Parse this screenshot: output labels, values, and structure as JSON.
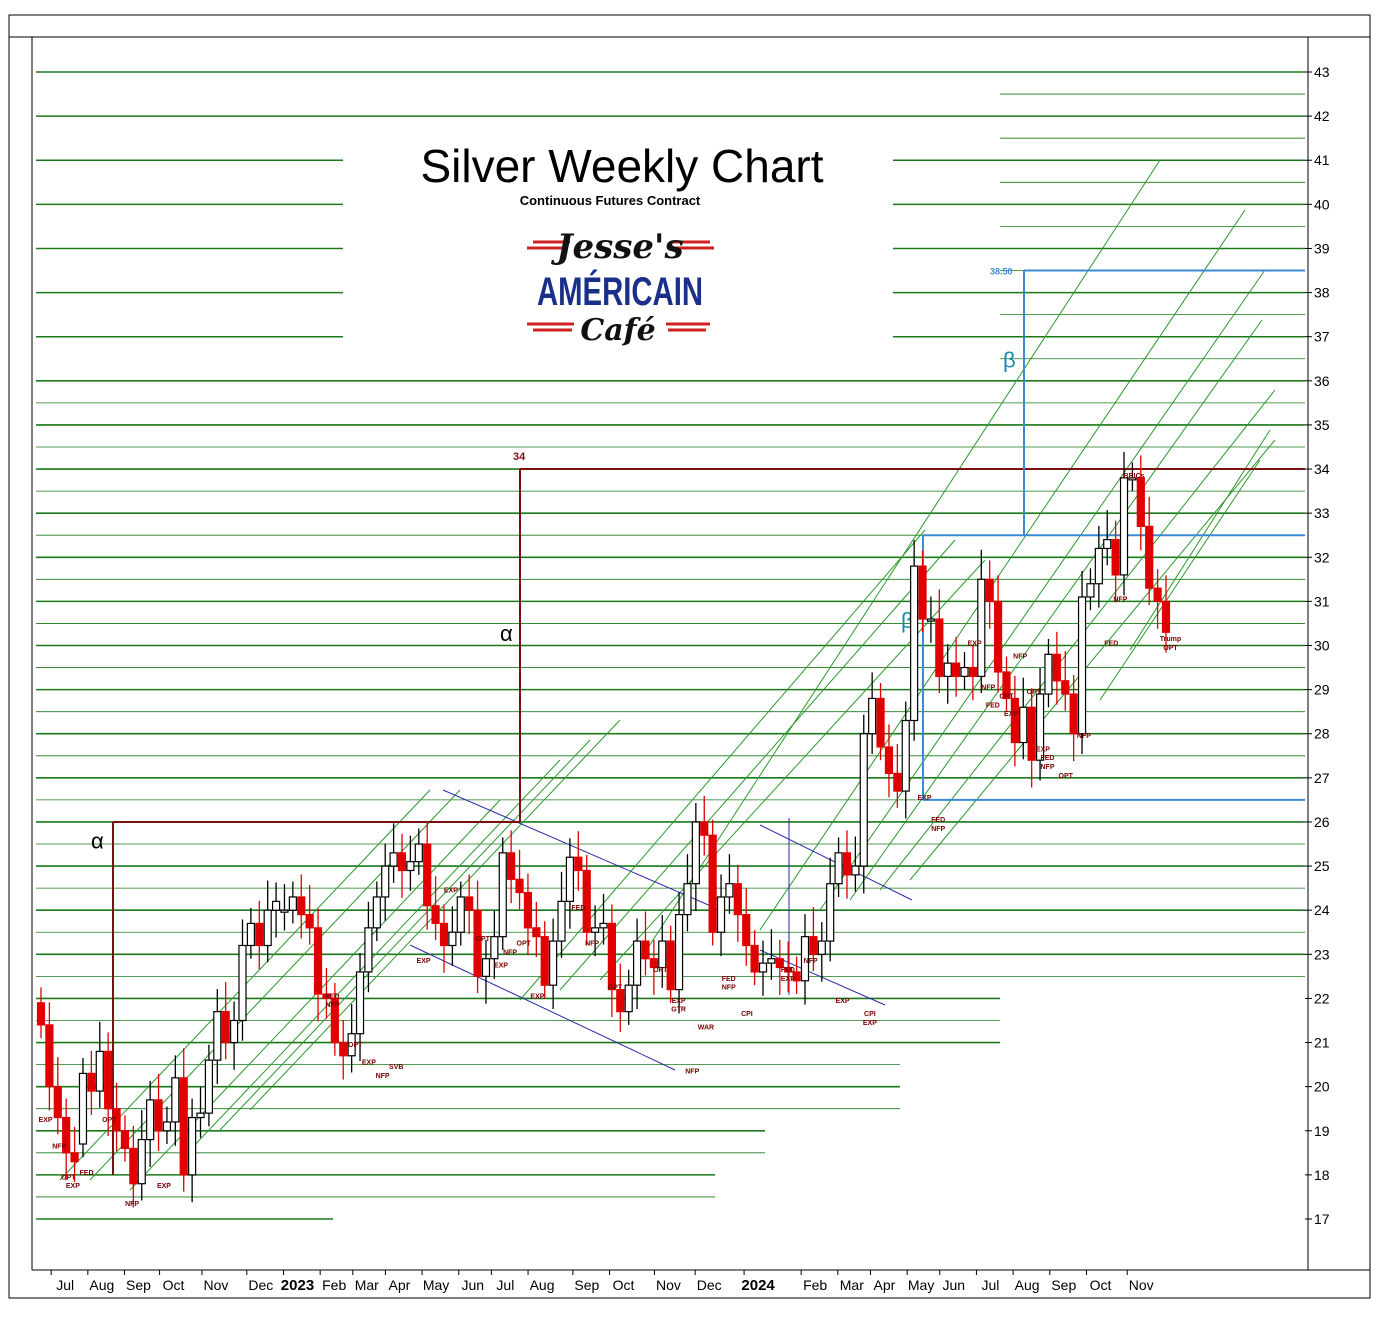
{
  "chart_data": {
    "type": "candlestick",
    "title": "Silver Weekly Chart",
    "subtitle": "Continuous Futures Contract",
    "logo": {
      "line1": "Jesse's",
      "line2": "AMÉRICAIN",
      "line3": "Café",
      "accent_color": "#cc2222",
      "text_color": "#1a2f8a"
    },
    "ylim": [
      16,
      43.5
    ],
    "y_ticks": [
      17,
      18,
      19,
      20,
      21,
      22,
      23,
      24,
      25,
      26,
      27,
      28,
      29,
      30,
      31,
      32,
      33,
      34,
      35,
      36,
      37,
      38,
      39,
      40,
      41,
      42,
      43
    ],
    "x_ticks": [
      {
        "label": "Jul",
        "week": 1
      },
      {
        "label": "Aug",
        "week": 5.5
      },
      {
        "label": "Sep",
        "week": 10
      },
      {
        "label": "Oct",
        "week": 14.3
      },
      {
        "label": "Nov",
        "week": 19.5
      },
      {
        "label": "Dec",
        "week": 25
      },
      {
        "label": "2023",
        "week": 29.5,
        "year": true
      },
      {
        "label": "Feb",
        "week": 34
      },
      {
        "label": "Mar",
        "week": 38
      },
      {
        "label": "Apr",
        "week": 42
      },
      {
        "label": "May",
        "week": 46.5
      },
      {
        "label": "Jun",
        "week": 51
      },
      {
        "label": "Jul",
        "week": 55
      },
      {
        "label": "Aug",
        "week": 59.5
      },
      {
        "label": "Sep",
        "week": 65
      },
      {
        "label": "Oct",
        "week": 69.5
      },
      {
        "label": "Nov",
        "week": 75
      },
      {
        "label": "Dec",
        "week": 80
      },
      {
        "label": "2024",
        "week": 86,
        "year": true
      },
      {
        "label": "Feb",
        "week": 93
      },
      {
        "label": "Mar",
        "week": 97.5
      },
      {
        "label": "Apr",
        "week": 101.5
      },
      {
        "label": "May",
        "week": 106
      },
      {
        "label": "Jun",
        "week": 110
      },
      {
        "label": "Jul",
        "week": 114.5
      },
      {
        "label": "Aug",
        "week": 119
      },
      {
        "label": "Sep",
        "week": 123.5
      },
      {
        "label": "Oct",
        "week": 128
      },
      {
        "label": "Nov",
        "week": 133
      }
    ],
    "candles": [
      [
        21.9,
        21.4
      ],
      [
        21.4,
        20.0
      ],
      [
        20.0,
        19.3
      ],
      [
        19.3,
        18.5
      ],
      [
        18.5,
        18.3
      ],
      [
        18.7,
        20.3
      ],
      [
        20.3,
        19.9
      ],
      [
        19.9,
        20.8
      ],
      [
        20.8,
        19.5
      ],
      [
        19.5,
        19.0
      ],
      [
        19.0,
        18.6
      ],
      [
        18.6,
        17.8
      ],
      [
        17.8,
        18.8
      ],
      [
        18.8,
        19.7
      ],
      [
        19.7,
        19.0
      ],
      [
        19.0,
        19.2
      ],
      [
        19.2,
        20.2
      ],
      [
        20.2,
        18.0
      ],
      [
        18.0,
        19.3
      ],
      [
        19.3,
        19.4
      ],
      [
        19.4,
        20.6
      ],
      [
        20.6,
        21.7
      ],
      [
        21.7,
        21.0
      ],
      [
        21.0,
        21.5
      ],
      [
        21.5,
        23.2
      ],
      [
        23.2,
        23.7
      ],
      [
        23.7,
        23.2
      ],
      [
        23.2,
        24.0
      ],
      [
        24.0,
        24.2
      ],
      [
        24.0,
        24.0
      ],
      [
        24.0,
        24.3
      ],
      [
        24.3,
        23.9
      ],
      [
        23.9,
        23.6
      ],
      [
        23.6,
        22.1
      ],
      [
        22.1,
        22.0
      ],
      [
        22.0,
        21.0
      ],
      [
        21.0,
        20.7
      ],
      [
        20.7,
        21.2
      ],
      [
        21.2,
        22.6
      ],
      [
        22.6,
        23.6
      ],
      [
        23.6,
        24.3
      ],
      [
        24.3,
        25.0
      ],
      [
        25.0,
        25.3
      ],
      [
        25.3,
        24.9
      ],
      [
        24.9,
        25.1
      ],
      [
        25.1,
        25.5
      ],
      [
        25.5,
        24.1
      ],
      [
        24.1,
        23.7
      ],
      [
        23.7,
        23.2
      ],
      [
        23.2,
        23.5
      ],
      [
        23.5,
        24.3
      ],
      [
        24.3,
        24.0
      ],
      [
        24.0,
        22.5
      ],
      [
        22.5,
        22.9
      ],
      [
        22.9,
        23.4
      ],
      [
        23.4,
        25.3
      ],
      [
        25.3,
        24.7
      ],
      [
        24.7,
        24.4
      ],
      [
        24.4,
        23.6
      ],
      [
        23.6,
        23.4
      ],
      [
        23.4,
        22.3
      ],
      [
        22.3,
        23.3
      ],
      [
        23.3,
        24.2
      ],
      [
        24.2,
        25.2
      ],
      [
        25.2,
        24.9
      ],
      [
        24.9,
        23.5
      ],
      [
        23.5,
        23.6
      ],
      [
        23.6,
        23.7
      ],
      [
        23.7,
        22.2
      ],
      [
        22.2,
        21.7
      ],
      [
        21.7,
        22.3
      ],
      [
        22.3,
        23.3
      ],
      [
        23.3,
        22.9
      ],
      [
        22.9,
        22.7
      ],
      [
        22.7,
        23.3
      ],
      [
        23.3,
        22.2
      ],
      [
        22.2,
        23.9
      ],
      [
        23.9,
        24.6
      ],
      [
        24.6,
        26.0
      ],
      [
        26.0,
        25.7
      ],
      [
        25.7,
        23.5
      ],
      [
        23.5,
        24.3
      ],
      [
        24.3,
        24.6
      ],
      [
        24.6,
        23.9
      ],
      [
        23.9,
        23.2
      ],
      [
        23.2,
        22.6
      ],
      [
        22.6,
        22.8
      ],
      [
        22.8,
        22.9
      ],
      [
        22.9,
        22.7
      ],
      [
        22.7,
        22.6
      ],
      [
        22.6,
        22.4
      ],
      [
        22.4,
        23.4
      ],
      [
        23.4,
        23.0
      ],
      [
        23.0,
        23.3
      ],
      [
        23.3,
        24.6
      ],
      [
        24.6,
        25.3
      ],
      [
        25.3,
        24.8
      ],
      [
        24.8,
        25.0
      ],
      [
        25.0,
        28.0
      ],
      [
        28.0,
        28.8
      ],
      [
        28.8,
        27.7
      ],
      [
        27.7,
        27.1
      ],
      [
        27.1,
        26.7
      ],
      [
        26.7,
        28.3
      ],
      [
        28.3,
        31.8
      ],
      [
        31.8,
        30.6
      ],
      [
        30.6,
        30.6
      ],
      [
        30.6,
        29.3
      ],
      [
        29.3,
        29.6
      ],
      [
        29.6,
        29.3
      ],
      [
        29.3,
        29.5
      ],
      [
        29.5,
        29.3
      ],
      [
        29.3,
        31.5
      ],
      [
        31.5,
        31.0
      ],
      [
        31.0,
        29.4
      ],
      [
        29.4,
        28.8
      ],
      [
        28.8,
        27.8
      ],
      [
        27.8,
        28.6
      ],
      [
        28.6,
        27.4
      ],
      [
        27.4,
        28.9
      ],
      [
        28.9,
        29.8
      ],
      [
        29.8,
        29.2
      ],
      [
        29.2,
        28.9
      ],
      [
        28.9,
        28.0
      ],
      [
        28.0,
        31.1
      ],
      [
        31.1,
        31.4
      ],
      [
        31.4,
        32.2
      ],
      [
        32.2,
        32.4
      ],
      [
        32.4,
        31.6
      ],
      [
        31.6,
        33.8
      ],
      [
        33.8,
        33.8
      ],
      [
        33.8,
        32.7
      ],
      [
        32.7,
        31.3
      ],
      [
        31.3,
        31.0
      ],
      [
        31.0,
        30.3
      ]
    ],
    "horizontal_levels": [
      {
        "value": 34,
        "label": "34",
        "color": "#7a1010"
      },
      {
        "value": 26,
        "color": "#7a1010"
      },
      {
        "value": 38.5,
        "label": "38.50",
        "color": "#3a8ad6"
      },
      {
        "value": 32.5,
        "color": "#3a8ad6"
      },
      {
        "value": 26.5,
        "color": "#3a8ad6"
      }
    ],
    "measured_moves": [
      {
        "label": "α",
        "from": 26,
        "to": 34,
        "color": "#000000"
      },
      {
        "label": "α",
        "from": 18,
        "to": 26,
        "color": "#000000"
      },
      {
        "label": "β",
        "from": 26.5,
        "to": 32.5,
        "color": "#1a8aaa"
      },
      {
        "label": "β",
        "from": 32.5,
        "to": 38.5,
        "color": "#1a8aaa"
      }
    ],
    "annotations": [
      {
        "text": "EXP",
        "week": 1,
        "value": 19.2
      },
      {
        "text": "NFP",
        "week": 4,
        "value": 18.6
      },
      {
        "text": "OPT",
        "week": 6,
        "value": 17.9
      },
      {
        "text": "EXP",
        "week": 7,
        "value": 17.7
      },
      {
        "text": "FED",
        "week": 10,
        "value": 18.0
      },
      {
        "text": "OPT",
        "week": 15,
        "value": 19.2
      },
      {
        "text": "NFP",
        "week": 20,
        "value": 17.3
      },
      {
        "text": "EXP",
        "week": 27,
        "value": 17.7
      },
      {
        "text": "FED",
        "week": 64,
        "value": 22.0
      },
      {
        "text": "NFP",
        "week": 64,
        "value": 21.8
      },
      {
        "text": "OPT",
        "week": 69,
        "value": 20.9
      },
      {
        "text": "EXP",
        "week": 72,
        "value": 20.5
      },
      {
        "text": "NFP",
        "week": 75,
        "value": 20.2
      },
      {
        "text": "SVB",
        "week": 78,
        "value": 20.4
      },
      {
        "text": "EXP",
        "week": 84,
        "value": 22.8
      },
      {
        "text": "EXP",
        "week": 90,
        "value": 24.4
      },
      {
        "text": "OPT",
        "week": 97,
        "value": 23.3
      },
      {
        "text": "EXP",
        "week": 101,
        "value": 22.7
      },
      {
        "text": "NFP",
        "week": 103,
        "value": 23.0
      },
      {
        "text": "OPT",
        "week": 106,
        "value": 23.2
      },
      {
        "text": "EXP",
        "week": 109,
        "value": 22.0
      },
      {
        "text": "FED",
        "week": 118,
        "value": 24.0
      },
      {
        "text": "NFP",
        "week": 121,
        "value": 23.2
      },
      {
        "text": "OPT",
        "week": 126,
        "value": 22.2
      },
      {
        "text": "OPT",
        "week": 136,
        "value": 22.6
      },
      {
        "text": "EXP",
        "week": 140,
        "value": 21.9
      },
      {
        "text": "GTR",
        "week": 140,
        "value": 21.7
      },
      {
        "text": "NFP",
        "week": 143,
        "value": 20.3
      },
      {
        "text": "WAR",
        "week": 146,
        "value": 21.3
      },
      {
        "text": "FED",
        "week": 151,
        "value": 22.4
      },
      {
        "text": "NFP",
        "week": 151,
        "value": 22.2
      },
      {
        "text": "CPI",
        "week": 155,
        "value": 21.6
      },
      {
        "text": "FED",
        "week": 164,
        "value": 22.6
      },
      {
        "text": "EXP",
        "week": 164,
        "value": 22.4
      },
      {
        "text": "NFP",
        "week": 169,
        "value": 22.8
      },
      {
        "text": "EXP",
        "week": 176,
        "value": 21.9
      },
      {
        "text": "CPI",
        "week": 182,
        "value": 21.6
      },
      {
        "text": "EXP",
        "week": 182,
        "value": 21.4
      },
      {
        "text": "EXP",
        "week": 194,
        "value": 26.5
      },
      {
        "text": "FED",
        "week": 197,
        "value": 26.0
      },
      {
        "text": "NFP",
        "week": 197,
        "value": 25.8
      },
      {
        "text": "EXP",
        "week": 205,
        "value": 30.0
      },
      {
        "text": "NFP",
        "week": 208,
        "value": 29.0
      },
      {
        "text": "FED",
        "week": 209,
        "value": 28.6
      },
      {
        "text": "OPT",
        "week": 212,
        "value": 28.8
      },
      {
        "text": "EXP",
        "week": 213,
        "value": 28.4
      },
      {
        "text": "NFP",
        "week": 215,
        "value": 29.7
      },
      {
        "text": "OPT",
        "week": 218,
        "value": 28.9
      },
      {
        "text": "EXP",
        "week": 220,
        "value": 27.6
      },
      {
        "text": "FED",
        "week": 221,
        "value": 27.4
      },
      {
        "text": "NFP",
        "week": 221,
        "value": 27.2
      },
      {
        "text": "OPT",
        "week": 225,
        "value": 27.0
      },
      {
        "text": "NFP",
        "week": 229,
        "value": 27.9
      },
      {
        "text": "FED",
        "week": 235,
        "value": 30.0
      },
      {
        "text": "NFP",
        "week": 237,
        "value": 31.0
      },
      {
        "text": "BRICs",
        "week": 240,
        "value": 33.8
      },
      {
        "text": "Trump",
        "week": 248,
        "value": 30.1
      },
      {
        "text": "OPT",
        "week": 248,
        "value": 29.9
      }
    ]
  }
}
